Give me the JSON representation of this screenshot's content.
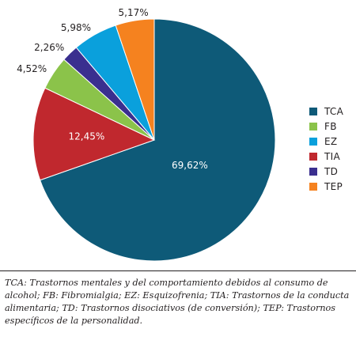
{
  "chart_data": {
    "type": "pie",
    "categories": [
      "TCA",
      "FB",
      "EZ",
      "TIA",
      "TD",
      "TEP"
    ],
    "values": [
      69.62,
      4.52,
      5.98,
      12.45,
      2.26,
      5.17
    ],
    "value_labels": [
      "69,62%",
      "4,52%",
      "5,98%",
      "12,45%",
      "2,26%",
      "5,17%"
    ],
    "colors": [
      "#0e5a78",
      "#8bc34a",
      "#0aa0dc",
      "#c0282e",
      "#3a2f8f",
      "#f5821f"
    ],
    "slice_order": [
      "TCA",
      "TIA",
      "FB",
      "TD",
      "EZ",
      "TEP"
    ],
    "start": "top, clockwise",
    "legend_position": "right",
    "title": "",
    "xlabel": "",
    "ylabel": ""
  },
  "caption_lines": [
    "TCA: Trastornos mentales y del comportamiento debidos al consumo de",
    "alcohol; FB: Fibromialgia; EZ: Esquizofrenia; TIA: Trastornos de la conducta",
    "alimentaria; TD: Trastornos disociativos (de conversión); TEP: Trastornos",
    "específicos de la personalidad."
  ]
}
